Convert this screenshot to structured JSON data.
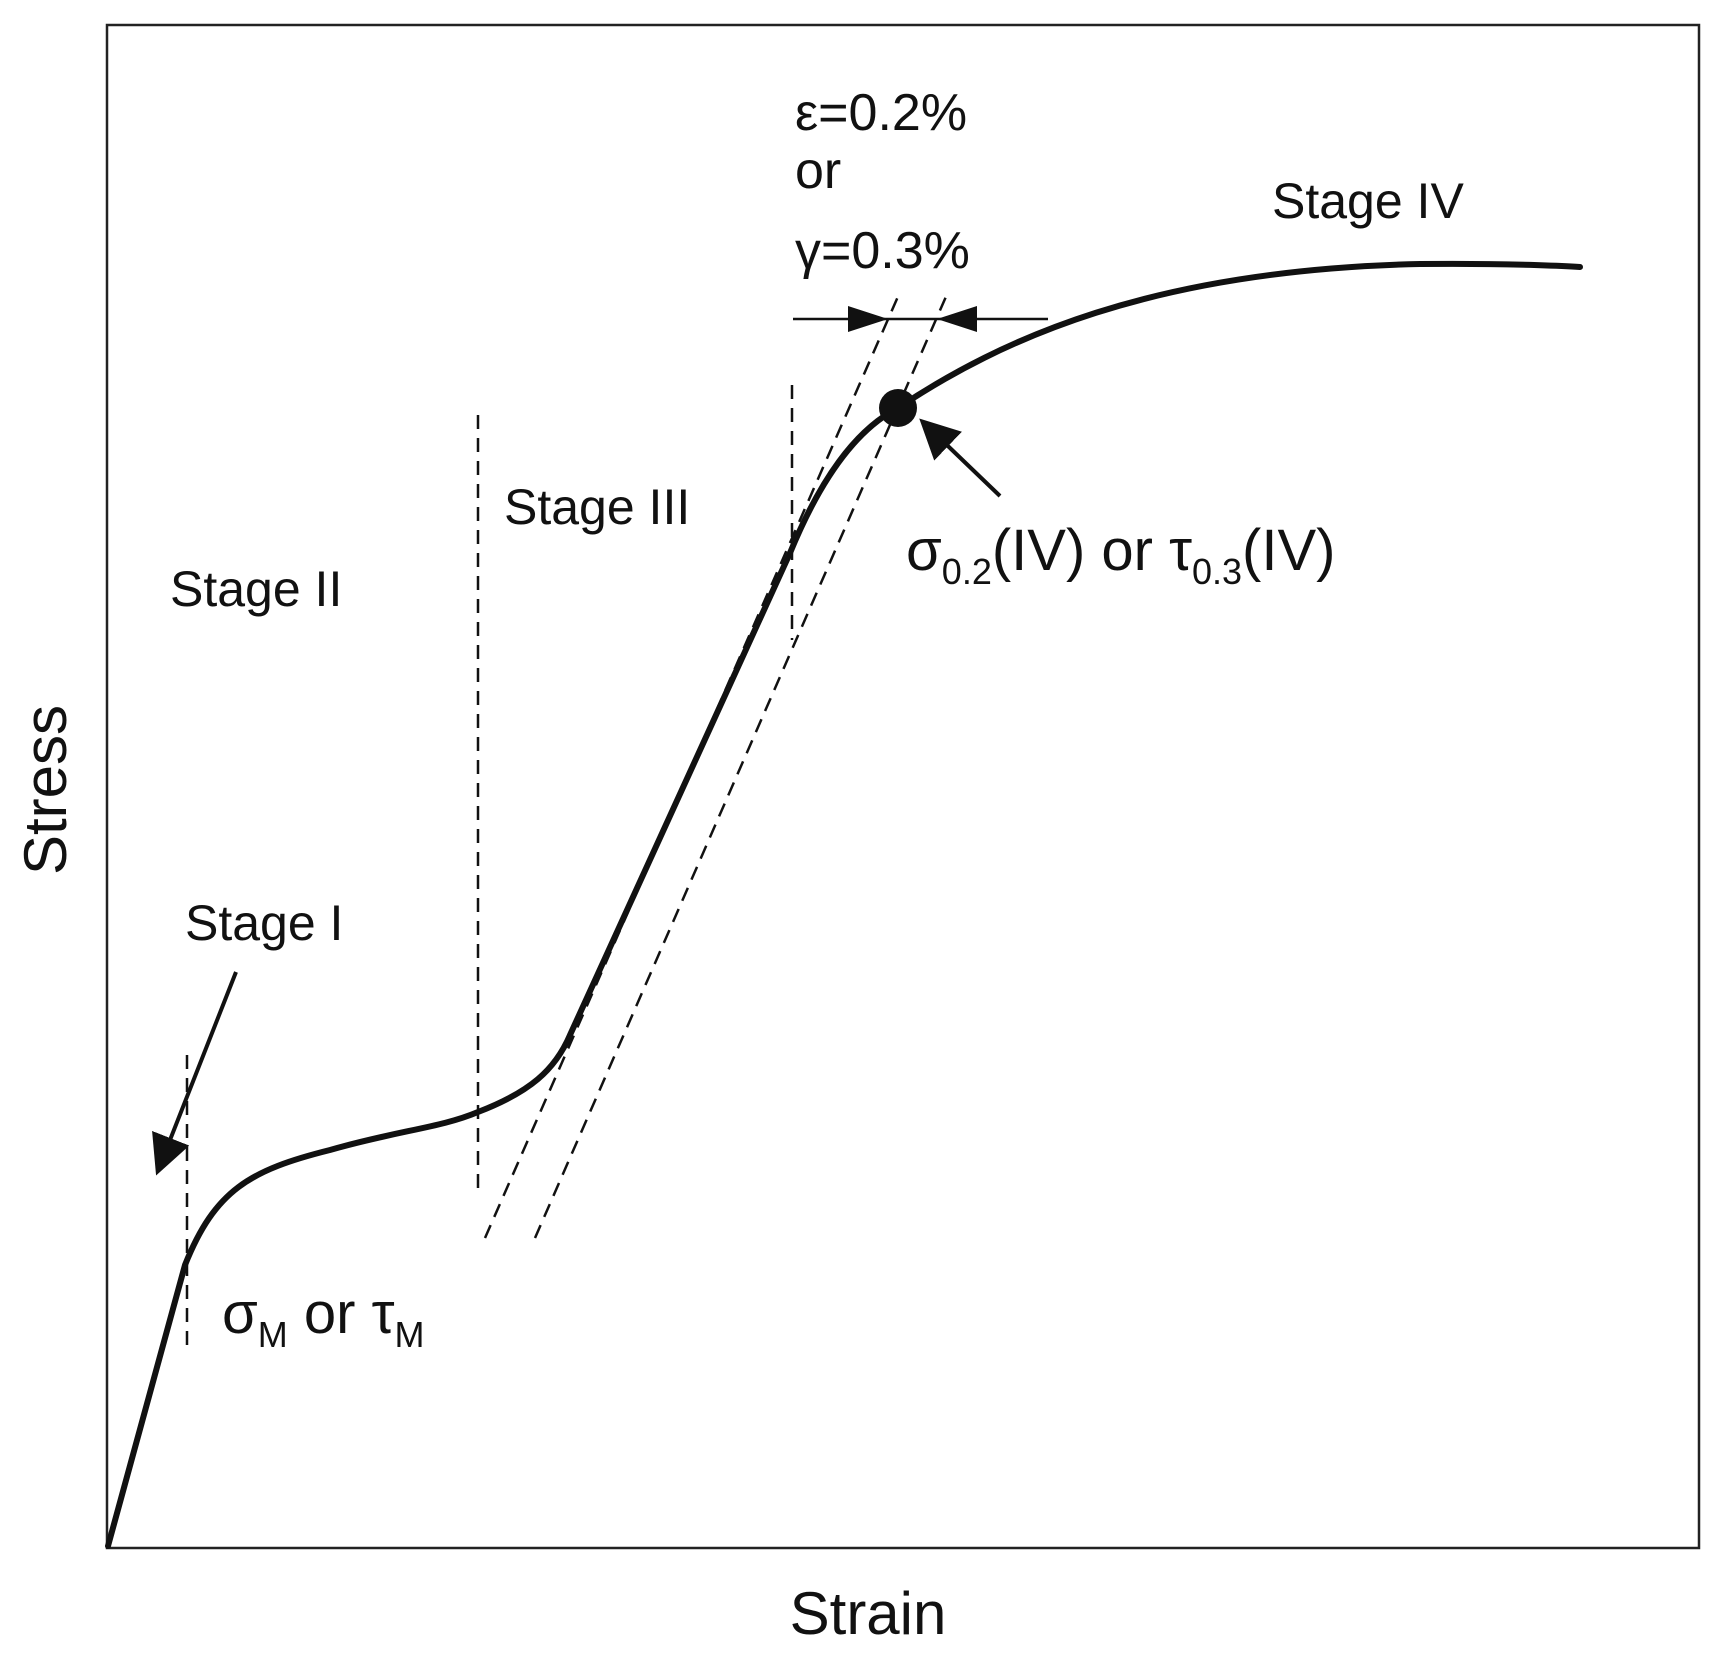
{
  "figure": {
    "axis_x_label": "Strain",
    "axis_y_label": "Stress",
    "stages": {
      "stage_1": "Stage I",
      "stage_2": "Stage II",
      "stage_3": "Stage III",
      "stage_4": "Stage IV"
    },
    "critical_stress": {
      "sigma": "σ",
      "sigma_sub": "M",
      "connector": " or ",
      "tau": "τ",
      "tau_sub": "M"
    },
    "proof_stress": {
      "sigma": "σ",
      "sigma_sub": "0.2",
      "sigma_tail": "(IV) or ",
      "tau": "τ",
      "tau_sub": "0.3",
      "tau_tail": "(IV)"
    },
    "offset": {
      "line1": "ε=0.2%",
      "line2": "or",
      "line3": "γ=0.3%"
    },
    "colors": {
      "curve": "#111111",
      "frame": "#222222",
      "background": "#ffffff"
    }
  }
}
